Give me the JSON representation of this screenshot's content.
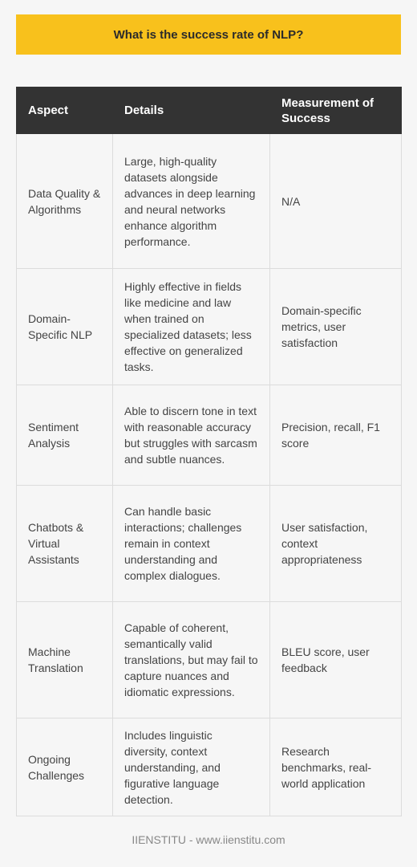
{
  "title": "What is the success rate of NLP?",
  "table": {
    "headers": [
      "Aspect",
      "Details",
      "Measurement of Success"
    ],
    "rows": [
      {
        "aspect": "Data Quality & Algorithms",
        "details": "Large, high-quality datasets alongside advances in deep learning and neural networks enhance algorithm performance.",
        "measurement": "N/A"
      },
      {
        "aspect": "Domain-Specific NLP",
        "details": "Highly effective in fields like medicine and law when trained on specialized datasets; less effective on generalized tasks.",
        "measurement": "Domain-specific metrics, user satisfaction"
      },
      {
        "aspect": "Sentiment Analysis",
        "details": "Able to discern tone in text with reasonable accuracy but struggles with sarcasm and subtle nuances.",
        "measurement": "Precision, recall, F1 score"
      },
      {
        "aspect": "Chatbots & Virtual Assistants",
        "details": "Can handle basic interactions; challenges remain in context understanding and complex dialogues.",
        "measurement": "User satisfaction, context appropriateness"
      },
      {
        "aspect": "Machine Translation",
        "details": "Capable of coherent, semantically valid translations, but may fail to capture nuances and idiomatic expressions.",
        "measurement": "BLEU score, user feedback"
      },
      {
        "aspect": "Ongoing Challenges",
        "details": "Includes linguistic diversity, context understanding, and figurative language detection.",
        "measurement": "Research benchmarks, real-world application"
      }
    ]
  },
  "footer": "IIENSTITU - www.iienstitu.com",
  "colors": {
    "banner": "#f8c11c",
    "header_bg": "#333333",
    "page_bg": "#f6f6f6"
  }
}
